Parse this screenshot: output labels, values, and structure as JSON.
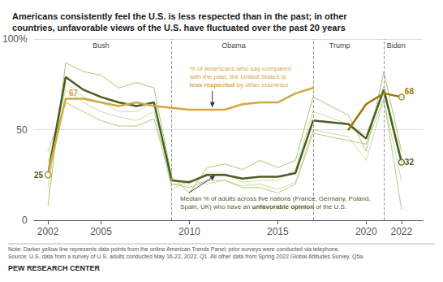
{
  "chart_data": {
    "type": "line",
    "title": "Americans consistently feel the U.S. is less respected than in the past; in other\ncountries, unfavorable views of the U.S. have fluctuated over the past 20 years",
    "note": "Note: Darker yellow line represents data points from the online American Trends Panel; prior surveys were conducted via telephone.",
    "source": "Source: U.S. data from a survey of U.S. adults conducted May 16-22, 2022. Q1. All other data from Spring 2022 Global Attitudes Survey. Q5a.",
    "credit": "PEW RESEARCH CENTER",
    "xlim": [
      2001.2,
      2023.2
    ],
    "xticks": [
      2002,
      2005,
      2010,
      2015,
      2020,
      2022
    ],
    "ylim": [
      0,
      100
    ],
    "yticks": [
      0,
      50,
      {
        "value": 100,
        "label": "100%"
      }
    ],
    "grid": true,
    "vlines": [
      2009.0,
      2017.0,
      2021.0
    ],
    "series": [
      {
        "type": "line",
        "color": "#a8c870",
        "x": [
          2002,
          2003,
          2004,
          2005,
          2006,
          2007,
          2008,
          2009,
          2010,
          2011,
          2012,
          2013,
          2014,
          2015,
          2016,
          2017,
          2019,
          2020,
          2021,
          2022
        ],
        "values": [
          8,
          87,
          82,
          80,
          73,
          76,
          73,
          24,
          15,
          29,
          31,
          28,
          33,
          29,
          33,
          68,
          58,
          38,
          82,
          38
        ]
      },
      {
        "type": "line",
        "color": "#c8dea0",
        "x": [
          2002,
          2003,
          2004,
          2005,
          2006,
          2007,
          2008,
          2009,
          2010,
          2011,
          2012,
          2013,
          2014,
          2015,
          2016,
          2017,
          2019,
          2020,
          2021,
          2022
        ],
        "values": [
          18,
          76,
          68,
          65,
          60,
          60,
          65,
          20,
          20,
          26,
          26,
          21,
          22,
          22,
          28,
          60,
          53,
          47,
          74,
          34
        ]
      },
      {
        "type": "line",
        "color": "#c8dea0",
        "x": [
          2002,
          2003,
          2004,
          2005,
          2006,
          2007,
          2008,
          2009,
          2010,
          2011,
          2012,
          2013,
          2014,
          2015,
          2016,
          2017,
          2019,
          2020,
          2021,
          2022
        ],
        "values": [
          32,
          72,
          65,
          60,
          57,
          55,
          60,
          17,
          22,
          20,
          22,
          19,
          20,
          17,
          21,
          50,
          46,
          33,
          66,
          22
        ]
      },
      {
        "type": "line",
        "color": "#b5ca85",
        "x": [
          2002,
          2003,
          2004,
          2005,
          2006,
          2007,
          2008,
          2009,
          2010,
          2011,
          2012,
          2013,
          2014,
          2015,
          2016,
          2017,
          2019,
          2020,
          2021,
          2022
        ],
        "values": [
          38,
          65,
          60,
          55,
          52,
          52,
          56,
          20,
          18,
          22,
          22,
          18,
          18,
          15,
          20,
          48,
          44,
          42,
          67,
          6
        ]
      },
      {
        "type": "line",
        "color": "#4a5e23",
        "x": [
          2002,
          2003,
          2004,
          2005,
          2006,
          2007,
          2008,
          2009,
          2010,
          2011,
          2012,
          2013,
          2014,
          2015,
          2016,
          2017,
          2019,
          2020,
          2021,
          2022
        ],
        "values": [
          25,
          79,
          72,
          68,
          65,
          63,
          65,
          22,
          21,
          25,
          25,
          23,
          24,
          24,
          26,
          55,
          53,
          45,
          72,
          32
        ]
      },
      {
        "type": "line",
        "color": "#d4a843",
        "x": [
          2002,
          2003,
          2004,
          2005,
          2006,
          2007,
          2008,
          2009,
          2010,
          2011,
          2012,
          2013,
          2014,
          2015,
          2016,
          2017
        ],
        "values": [
          25,
          67,
          67,
          65,
          63,
          65,
          63,
          62,
          61,
          61,
          61,
          64,
          65,
          65,
          70,
          73
        ]
      },
      {
        "type": "line",
        "color": "#a07800",
        "x": [
          2019,
          2020,
          2021,
          2022
        ],
        "values": [
          50,
          64,
          70,
          68
        ]
      },
      {
        "type": "scatter",
        "marker": "circle",
        "color": "#4a5e23",
        "x": [
          2002,
          2022
        ],
        "values": [
          25,
          32
        ]
      },
      {
        "type": "scatter",
        "marker": "circle",
        "color": "#d4a843",
        "x": [
          2002
        ],
        "values": [
          25
        ]
      },
      {
        "type": "scatter",
        "marker": "circle",
        "color": "#a07800",
        "x": [
          2022
        ],
        "values": [
          68
        ]
      }
    ],
    "annotations": [
      {
        "text": "Bush",
        "x": 2005.0
      },
      {
        "text": "Obama",
        "x": 2012.5
      },
      {
        "text": "Trump",
        "x": 2018.5
      },
      {
        "text": "Biden",
        "x": 2021.7
      },
      {
        "text": [
          "% of Americans who say compared\nwith the past, the United States is\n",
          "less respected",
          " by other countries"
        ],
        "x": 2011.3,
        "y": 61.5,
        "color": "#d4a843"
      },
      {
        "text": [
          "Median % of adults across five nations (France, Germany, Poland,\nSpain, UK) who have an ",
          "unfavorable opinion",
          " of the U.S."
        ],
        "x": 2011.5,
        "y": 25.5,
        "color": "#4a5e23"
      },
      {
        "text": "67",
        "x": 2003,
        "y": 67,
        "color": "#d4a843"
      },
      {
        "text": "25",
        "x": 2002,
        "y": 25,
        "color": "#4a5e23"
      },
      {
        "text": "68",
        "x": 2022,
        "y": 68,
        "color": "#a07800"
      },
      {
        "text": "32",
        "x": 2022,
        "y": 32,
        "color": "#4a5e23"
      }
    ]
  }
}
